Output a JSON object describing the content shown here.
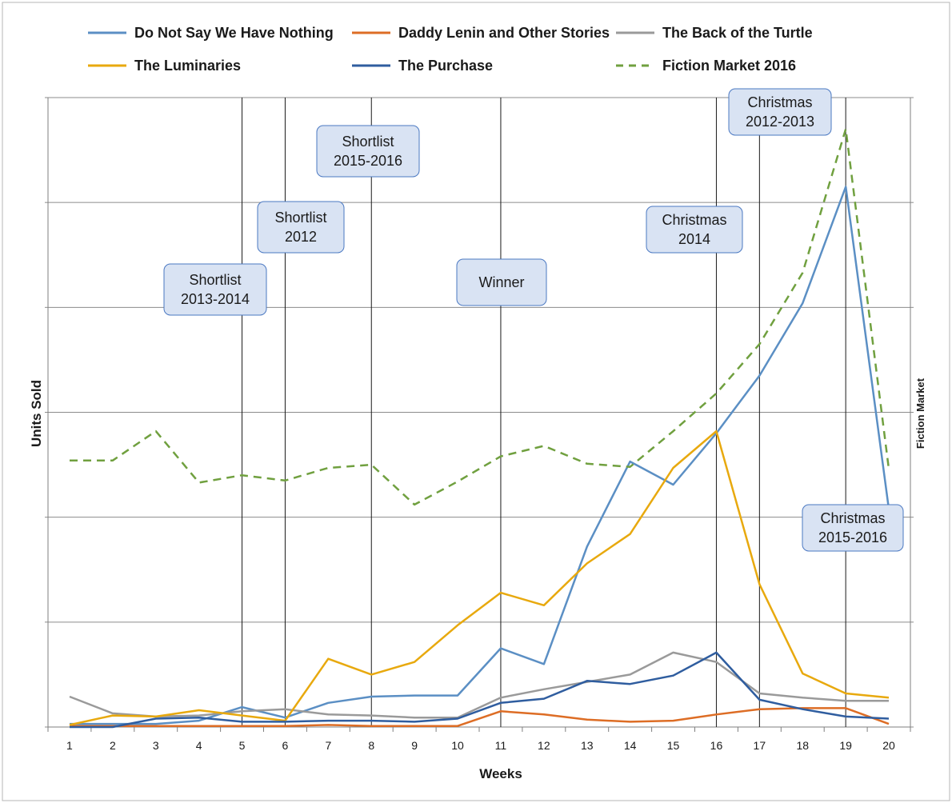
{
  "chart_data": {
    "type": "line",
    "xlabel": "Weeks",
    "ylabel": "Units Sold",
    "y2label": "Fiction Market",
    "x": [
      1,
      2,
      3,
      4,
      5,
      6,
      7,
      8,
      9,
      10,
      11,
      12,
      13,
      14,
      15,
      16,
      17,
      18,
      19,
      20
    ],
    "ylim": [
      0,
      6
    ],
    "grid": true,
    "legend_position": "top",
    "series": [
      {
        "name": "Do Not Say We Have Nothing",
        "color": "#5b8fc4",
        "dash": false,
        "values": [
          0.03,
          0.03,
          0.03,
          0.06,
          0.19,
          0.09,
          0.23,
          0.29,
          0.3,
          0.3,
          0.75,
          0.6,
          1.72,
          2.53,
          2.31,
          2.8,
          3.35,
          4.04,
          5.15,
          2.08
        ]
      },
      {
        "name": "Daddy Lenin and Other Stories",
        "color": "#dd6d25",
        "dash": false,
        "values": [
          0.01,
          0.01,
          0.01,
          0.01,
          0.01,
          0.01,
          0.02,
          0.01,
          0.01,
          0.01,
          0.15,
          0.12,
          0.07,
          0.05,
          0.06,
          0.12,
          0.17,
          0.18,
          0.18,
          0.03
        ]
      },
      {
        "name": "The Back of the Turtle",
        "color": "#9a9a9a",
        "dash": false,
        "values": [
          0.29,
          0.13,
          0.1,
          0.11,
          0.15,
          0.17,
          0.12,
          0.11,
          0.09,
          0.09,
          0.28,
          0.36,
          0.43,
          0.5,
          0.71,
          0.62,
          0.32,
          0.28,
          0.25,
          0.25
        ]
      },
      {
        "name": "The Luminaries",
        "color": "#e8a90e",
        "dash": false,
        "values": [
          0.02,
          0.11,
          0.1,
          0.16,
          0.11,
          0.06,
          0.65,
          0.5,
          0.62,
          0.97,
          1.28,
          1.16,
          1.56,
          1.84,
          2.47,
          2.82,
          1.36,
          0.51,
          0.32,
          0.28
        ]
      },
      {
        "name": "The Purchase",
        "color": "#2f5d9f",
        "dash": false,
        "values": [
          0.0,
          0.0,
          0.08,
          0.09,
          0.05,
          0.05,
          0.06,
          0.06,
          0.05,
          0.08,
          0.23,
          0.27,
          0.44,
          0.41,
          0.49,
          0.71,
          0.26,
          0.17,
          0.1,
          0.08
        ]
      },
      {
        "name": "Fiction Market 2016",
        "color": "#70a03f",
        "dash": true,
        "values": [
          2.54,
          2.54,
          2.82,
          2.33,
          2.4,
          2.35,
          2.47,
          2.5,
          2.12,
          2.34,
          2.58,
          2.68,
          2.51,
          2.48,
          2.82,
          3.18,
          3.65,
          4.33,
          5.7,
          2.46
        ]
      }
    ]
  },
  "annotations": [
    {
      "text_lines": [
        "Shortlist",
        "2013-2014"
      ],
      "week": 5
    },
    {
      "text_lines": [
        "Shortlist",
        "2012"
      ],
      "week": 6
    },
    {
      "text_lines": [
        "Shortlist",
        "2015-2016"
      ],
      "week": 8
    },
    {
      "text_lines": [
        "Winner"
      ],
      "week": 11
    },
    {
      "text_lines": [
        "Christmas",
        "2014"
      ],
      "week": 16
    },
    {
      "text_lines": [
        "Christmas",
        "2012-2013"
      ],
      "week": 17
    },
    {
      "text_lines": [
        "Christmas",
        "2015-2016"
      ],
      "week": 19
    }
  ],
  "colors": {
    "annotation_fill": "#d9e3f3",
    "annotation_stroke": "#4a78c2",
    "gridline": "#8c8c8c",
    "vertical_marker": "#1a1a1a"
  }
}
